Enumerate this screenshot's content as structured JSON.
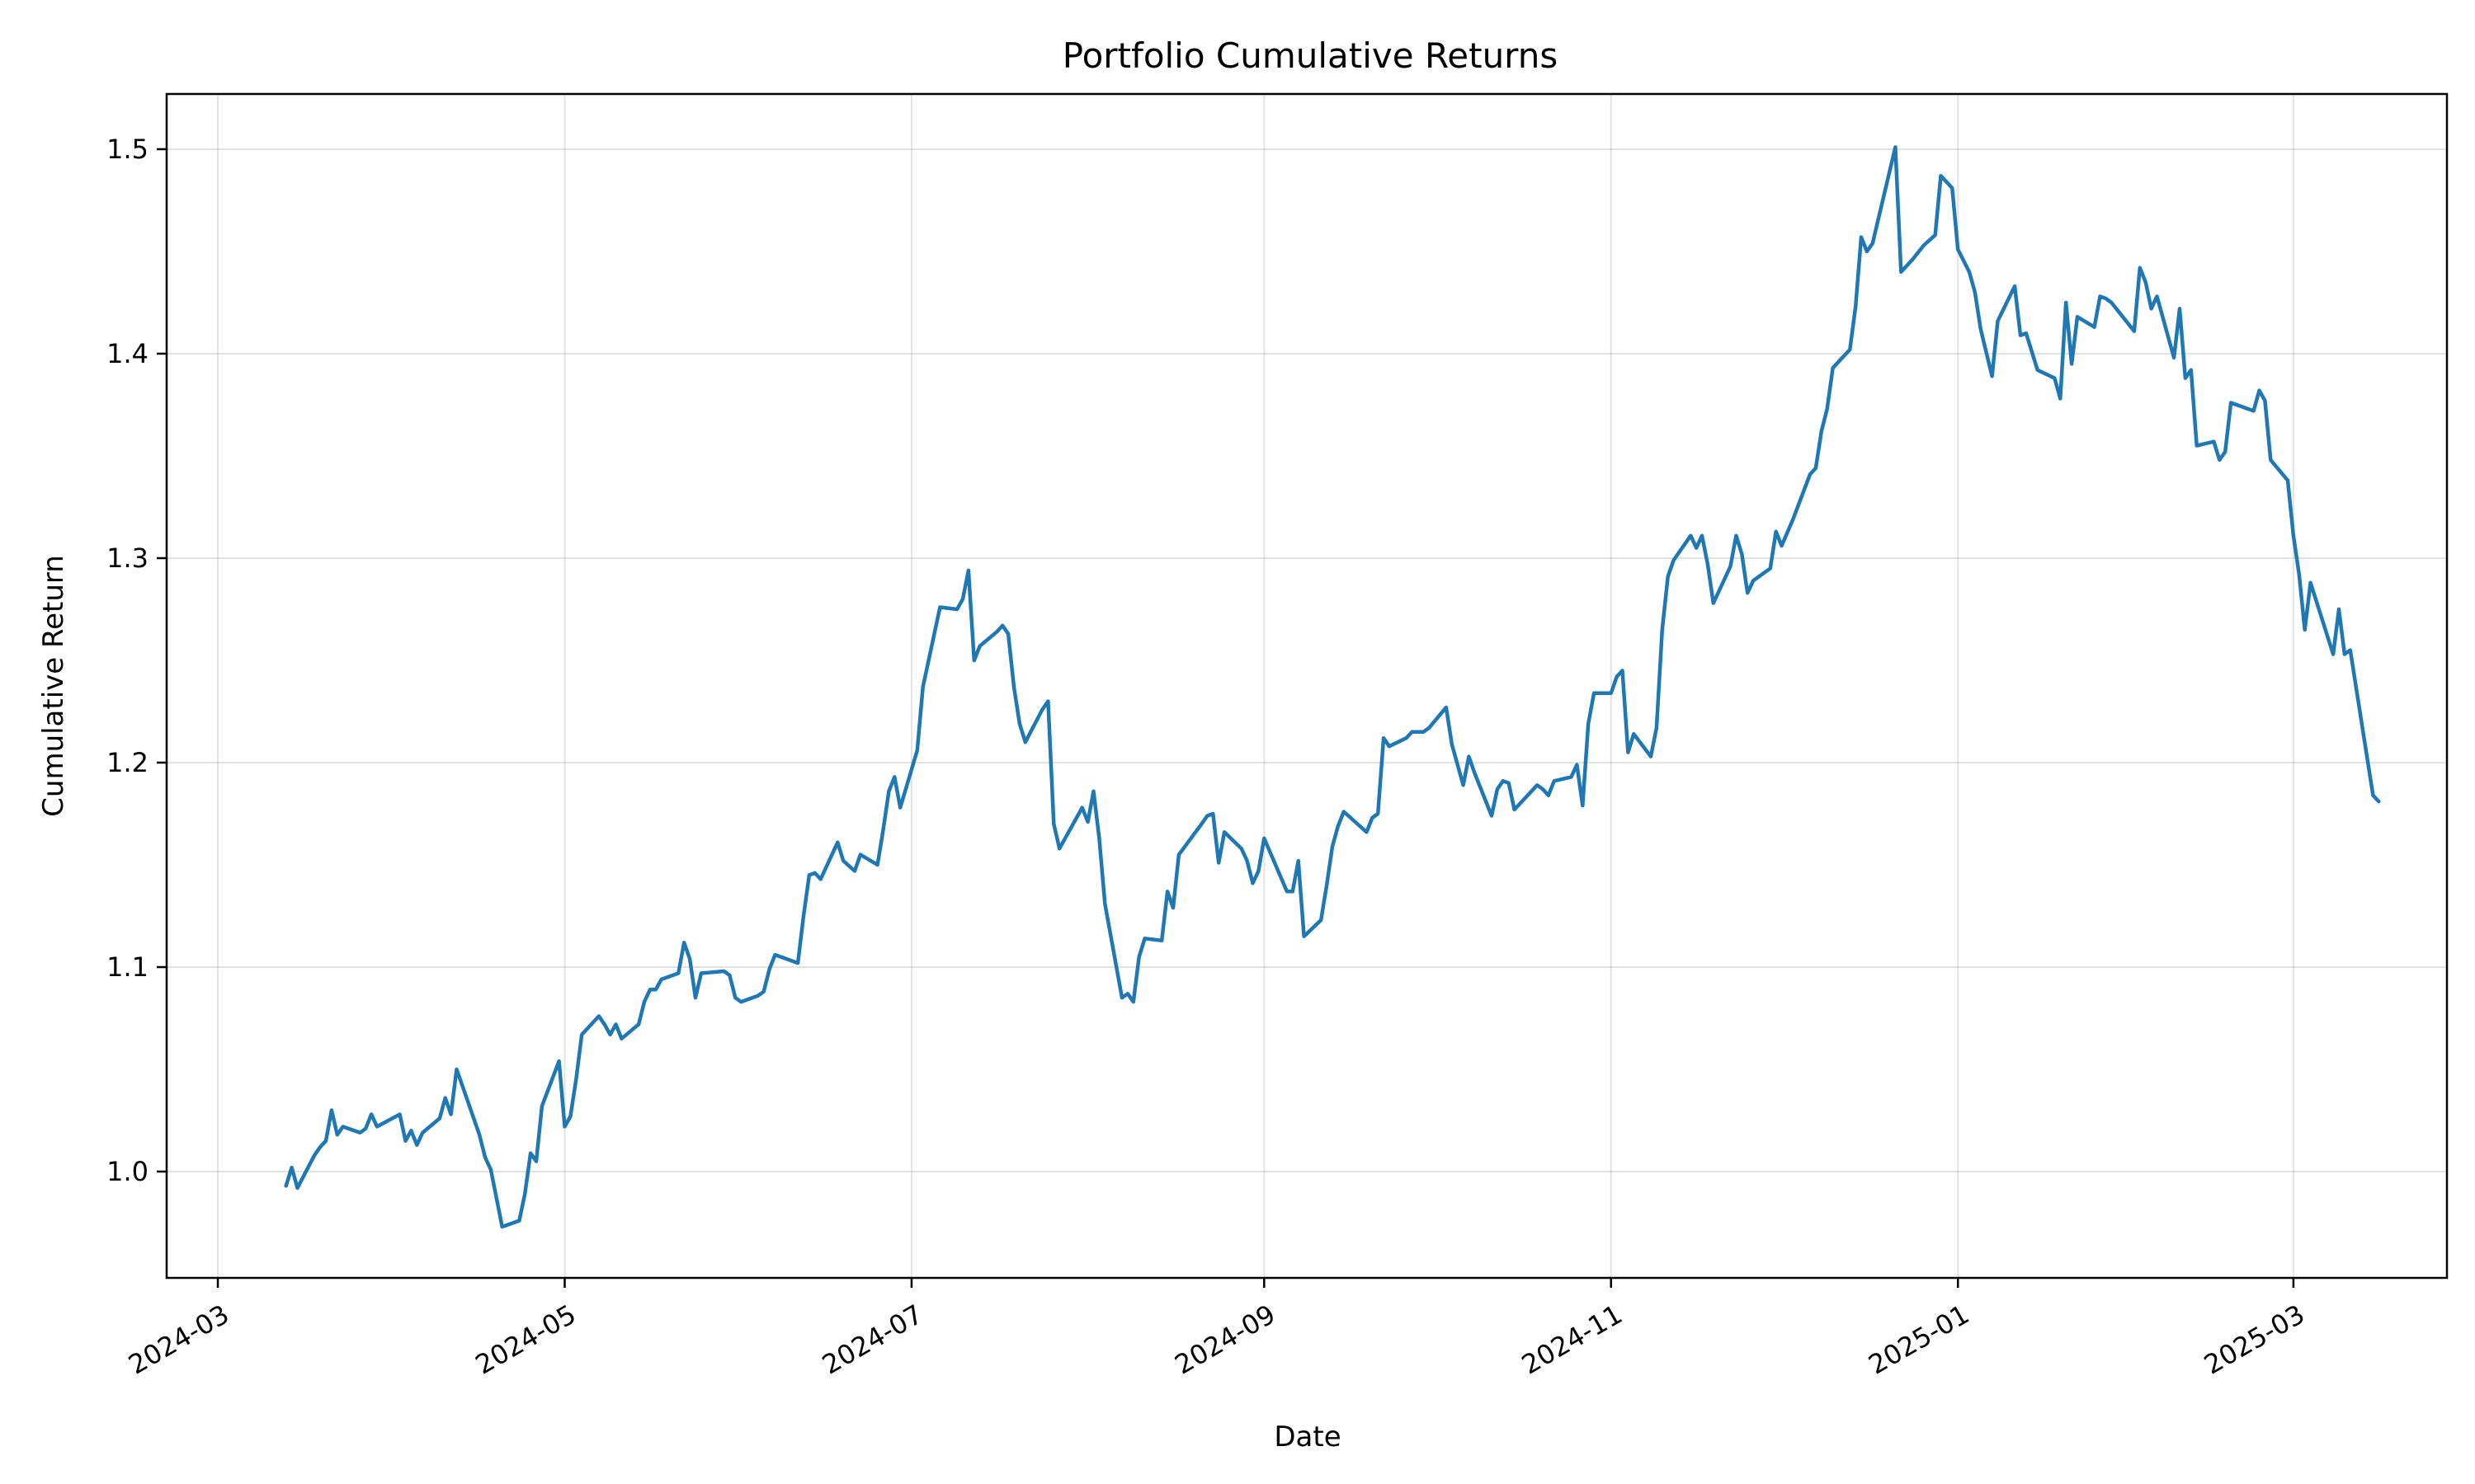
{
  "chart_data": {
    "type": "line",
    "title": "Portfolio Cumulative Returns",
    "xlabel": "Date",
    "ylabel": "Cumulative Return",
    "x_axis_type": "date",
    "xlim": [
      "2024-02-21",
      "2025-03-28"
    ],
    "ylim": [
      0.948,
      1.527
    ],
    "grid": true,
    "legend": "none",
    "line_color": "#1f77b4",
    "x_ticks": [
      {
        "value": "2024-03-01",
        "label": "2024-03"
      },
      {
        "value": "2024-05-01",
        "label": "2024-05"
      },
      {
        "value": "2024-07-01",
        "label": "2024-07"
      },
      {
        "value": "2024-09-01",
        "label": "2024-09"
      },
      {
        "value": "2024-11-01",
        "label": "2024-11"
      },
      {
        "value": "2025-01-01",
        "label": "2025-01"
      },
      {
        "value": "2025-03-01",
        "label": "2025-03"
      }
    ],
    "y_ticks": [
      {
        "value": 1.0,
        "label": "1.0"
      },
      {
        "value": 1.1,
        "label": "1.1"
      },
      {
        "value": 1.2,
        "label": "1.2"
      },
      {
        "value": 1.3,
        "label": "1.3"
      },
      {
        "value": 1.4,
        "label": "1.4"
      },
      {
        "value": 1.5,
        "label": "1.5"
      }
    ],
    "series": [
      {
        "points": [
          [
            "2024-03-13",
            0.993
          ],
          [
            "2024-03-14",
            1.002
          ],
          [
            "2024-03-15",
            0.992
          ],
          [
            "2024-03-18",
            1.008
          ],
          [
            "2024-03-19",
            1.012
          ],
          [
            "2024-03-20",
            1.015
          ],
          [
            "2024-03-21",
            1.03
          ],
          [
            "2024-03-22",
            1.018
          ],
          [
            "2024-03-23",
            1.022
          ],
          [
            "2024-03-26",
            1.019
          ],
          [
            "2024-03-27",
            1.021
          ],
          [
            "2024-03-28",
            1.028
          ],
          [
            "2024-03-29",
            1.022
          ],
          [
            "2024-04-02",
            1.028
          ],
          [
            "2024-04-03",
            1.015
          ],
          [
            "2024-04-04",
            1.02
          ],
          [
            "2024-04-05",
            1.013
          ],
          [
            "2024-04-06",
            1.019
          ],
          [
            "2024-04-09",
            1.026
          ],
          [
            "2024-04-10",
            1.036
          ],
          [
            "2024-04-11",
            1.028
          ],
          [
            "2024-04-12",
            1.05
          ],
          [
            "2024-04-16",
            1.018
          ],
          [
            "2024-04-17",
            1.007
          ],
          [
            "2024-04-18",
            1.001
          ],
          [
            "2024-04-19",
            0.987
          ],
          [
            "2024-04-20",
            0.973
          ],
          [
            "2024-04-23",
            0.976
          ],
          [
            "2024-04-24",
            0.989
          ],
          [
            "2024-04-25",
            1.009
          ],
          [
            "2024-04-26",
            1.005
          ],
          [
            "2024-04-27",
            1.032
          ],
          [
            "2024-04-30",
            1.054
          ],
          [
            "2024-05-01",
            1.022
          ],
          [
            "2024-05-02",
            1.027
          ],
          [
            "2024-05-03",
            1.045
          ],
          [
            "2024-05-04",
            1.067
          ],
          [
            "2024-05-07",
            1.076
          ],
          [
            "2024-05-08",
            1.072
          ],
          [
            "2024-05-09",
            1.067
          ],
          [
            "2024-05-10",
            1.072
          ],
          [
            "2024-05-11",
            1.065
          ],
          [
            "2024-05-14",
            1.072
          ],
          [
            "2024-05-15",
            1.083
          ],
          [
            "2024-05-16",
            1.089
          ],
          [
            "2024-05-17",
            1.089
          ],
          [
            "2024-05-18",
            1.094
          ],
          [
            "2024-05-21",
            1.097
          ],
          [
            "2024-05-22",
            1.112
          ],
          [
            "2024-05-23",
            1.104
          ],
          [
            "2024-05-24",
            1.085
          ],
          [
            "2024-05-25",
            1.097
          ],
          [
            "2024-05-29",
            1.098
          ],
          [
            "2024-05-30",
            1.096
          ],
          [
            "2024-05-31",
            1.085
          ],
          [
            "2024-06-01",
            1.083
          ],
          [
            "2024-06-04",
            1.086
          ],
          [
            "2024-06-05",
            1.088
          ],
          [
            "2024-06-06",
            1.099
          ],
          [
            "2024-06-07",
            1.106
          ],
          [
            "2024-06-11",
            1.102
          ],
          [
            "2024-06-12",
            1.125
          ],
          [
            "2024-06-13",
            1.145
          ],
          [
            "2024-06-14",
            1.146
          ],
          [
            "2024-06-15",
            1.143
          ],
          [
            "2024-06-18",
            1.161
          ],
          [
            "2024-06-19",
            1.152
          ],
          [
            "2024-06-21",
            1.147
          ],
          [
            "2024-06-22",
            1.155
          ],
          [
            "2024-06-25",
            1.15
          ],
          [
            "2024-06-26",
            1.167
          ],
          [
            "2024-06-27",
            1.186
          ],
          [
            "2024-06-28",
            1.193
          ],
          [
            "2024-06-29",
            1.178
          ],
          [
            "2024-07-02",
            1.206
          ],
          [
            "2024-07-03",
            1.237
          ],
          [
            "2024-07-04",
            1.25
          ],
          [
            "2024-07-06",
            1.276
          ],
          [
            "2024-07-09",
            1.275
          ],
          [
            "2024-07-10",
            1.28
          ],
          [
            "2024-07-11",
            1.294
          ],
          [
            "2024-07-12",
            1.25
          ],
          [
            "2024-07-13",
            1.257
          ],
          [
            "2024-07-16",
            1.264
          ],
          [
            "2024-07-17",
            1.267
          ],
          [
            "2024-07-18",
            1.263
          ],
          [
            "2024-07-19",
            1.237
          ],
          [
            "2024-07-20",
            1.219
          ],
          [
            "2024-07-21",
            1.21
          ],
          [
            "2024-07-24",
            1.226
          ],
          [
            "2024-07-25",
            1.23
          ],
          [
            "2024-07-26",
            1.17
          ],
          [
            "2024-07-27",
            1.158
          ],
          [
            "2024-07-28",
            1.163
          ],
          [
            "2024-07-31",
            1.178
          ],
          [
            "2024-08-01",
            1.171
          ],
          [
            "2024-08-02",
            1.186
          ],
          [
            "2024-08-03",
            1.163
          ],
          [
            "2024-08-04",
            1.131
          ],
          [
            "2024-08-07",
            1.085
          ],
          [
            "2024-08-08",
            1.087
          ],
          [
            "2024-08-09",
            1.083
          ],
          [
            "2024-08-10",
            1.105
          ],
          [
            "2024-08-11",
            1.114
          ],
          [
            "2024-08-14",
            1.113
          ],
          [
            "2024-08-15",
            1.137
          ],
          [
            "2024-08-16",
            1.129
          ],
          [
            "2024-08-17",
            1.155
          ],
          [
            "2024-08-21",
            1.17
          ],
          [
            "2024-08-22",
            1.174
          ],
          [
            "2024-08-23",
            1.175
          ],
          [
            "2024-08-24",
            1.151
          ],
          [
            "2024-08-25",
            1.166
          ],
          [
            "2024-08-28",
            1.158
          ],
          [
            "2024-08-29",
            1.152
          ],
          [
            "2024-08-30",
            1.141
          ],
          [
            "2024-08-31",
            1.147
          ],
          [
            "2024-09-01",
            1.163
          ],
          [
            "2024-09-05",
            1.137
          ],
          [
            "2024-09-06",
            1.137
          ],
          [
            "2024-09-07",
            1.152
          ],
          [
            "2024-09-08",
            1.115
          ],
          [
            "2024-09-11",
            1.123
          ],
          [
            "2024-09-12",
            1.14
          ],
          [
            "2024-09-13",
            1.159
          ],
          [
            "2024-09-14",
            1.169
          ],
          [
            "2024-09-15",
            1.176
          ],
          [
            "2024-09-19",
            1.166
          ],
          [
            "2024-09-20",
            1.173
          ],
          [
            "2024-09-21",
            1.175
          ],
          [
            "2024-09-22",
            1.212
          ],
          [
            "2024-09-23",
            1.208
          ],
          [
            "2024-09-26",
            1.212
          ],
          [
            "2024-09-27",
            1.215
          ],
          [
            "2024-09-29",
            1.215
          ],
          [
            "2024-09-30",
            1.217
          ],
          [
            "2024-10-03",
            1.227
          ],
          [
            "2024-10-04",
            1.209
          ],
          [
            "2024-10-06",
            1.189
          ],
          [
            "2024-10-07",
            1.203
          ],
          [
            "2024-10-08",
            1.195
          ],
          [
            "2024-10-11",
            1.174
          ],
          [
            "2024-10-12",
            1.187
          ],
          [
            "2024-10-13",
            1.191
          ],
          [
            "2024-10-14",
            1.19
          ],
          [
            "2024-10-15",
            1.177
          ],
          [
            "2024-10-19",
            1.189
          ],
          [
            "2024-10-20",
            1.187
          ],
          [
            "2024-10-21",
            1.184
          ],
          [
            "2024-10-22",
            1.191
          ],
          [
            "2024-10-25",
            1.193
          ],
          [
            "2024-10-26",
            1.199
          ],
          [
            "2024-10-27",
            1.179
          ],
          [
            "2024-10-28",
            1.219
          ],
          [
            "2024-10-29",
            1.234
          ],
          [
            "2024-11-01",
            1.234
          ],
          [
            "2024-11-02",
            1.242
          ],
          [
            "2024-11-03",
            1.245
          ],
          [
            "2024-11-04",
            1.205
          ],
          [
            "2024-11-05",
            1.214
          ],
          [
            "2024-11-08",
            1.203
          ],
          [
            "2024-11-09",
            1.217
          ],
          [
            "2024-11-10",
            1.265
          ],
          [
            "2024-11-11",
            1.291
          ],
          [
            "2024-11-12",
            1.299
          ],
          [
            "2024-11-15",
            1.311
          ],
          [
            "2024-11-16",
            1.305
          ],
          [
            "2024-11-17",
            1.311
          ],
          [
            "2024-11-18",
            1.297
          ],
          [
            "2024-11-19",
            1.278
          ],
          [
            "2024-11-22",
            1.296
          ],
          [
            "2024-11-23",
            1.311
          ],
          [
            "2024-11-24",
            1.302
          ],
          [
            "2024-11-25",
            1.283
          ],
          [
            "2024-11-26",
            1.289
          ],
          [
            "2024-11-29",
            1.295
          ],
          [
            "2024-11-30",
            1.313
          ],
          [
            "2024-12-01",
            1.306
          ],
          [
            "2024-12-03",
            1.319
          ],
          [
            "2024-12-06",
            1.341
          ],
          [
            "2024-12-07",
            1.344
          ],
          [
            "2024-12-08",
            1.362
          ],
          [
            "2024-12-09",
            1.373
          ],
          [
            "2024-12-10",
            1.393
          ],
          [
            "2024-12-13",
            1.402
          ],
          [
            "2024-12-14",
            1.423
          ],
          [
            "2024-12-15",
            1.457
          ],
          [
            "2024-12-16",
            1.45
          ],
          [
            "2024-12-17",
            1.454
          ],
          [
            "2024-12-21",
            1.501
          ],
          [
            "2024-12-22",
            1.44
          ],
          [
            "2024-12-24",
            1.446
          ],
          [
            "2024-12-26",
            1.453
          ],
          [
            "2024-12-28",
            1.458
          ],
          [
            "2024-12-29",
            1.487
          ],
          [
            "2024-12-31",
            1.481
          ],
          [
            "2025-01-01",
            1.451
          ],
          [
            "2025-01-03",
            1.44
          ],
          [
            "2025-01-04",
            1.43
          ],
          [
            "2025-01-05",
            1.412
          ],
          [
            "2025-01-07",
            1.389
          ],
          [
            "2025-01-08",
            1.416
          ],
          [
            "2025-01-11",
            1.433
          ],
          [
            "2025-01-12",
            1.409
          ],
          [
            "2025-01-13",
            1.41
          ],
          [
            "2025-01-15",
            1.392
          ],
          [
            "2025-01-18",
            1.388
          ],
          [
            "2025-01-19",
            1.378
          ],
          [
            "2025-01-20",
            1.425
          ],
          [
            "2025-01-21",
            1.395
          ],
          [
            "2025-01-22",
            1.418
          ],
          [
            "2025-01-25",
            1.413
          ],
          [
            "2025-01-26",
            1.428
          ],
          [
            "2025-01-27",
            1.427
          ],
          [
            "2025-01-28",
            1.425
          ],
          [
            "2025-02-01",
            1.411
          ],
          [
            "2025-02-02",
            1.442
          ],
          [
            "2025-02-03",
            1.435
          ],
          [
            "2025-02-04",
            1.422
          ],
          [
            "2025-02-05",
            1.428
          ],
          [
            "2025-02-08",
            1.398
          ],
          [
            "2025-02-09",
            1.422
          ],
          [
            "2025-02-10",
            1.388
          ],
          [
            "2025-02-11",
            1.392
          ],
          [
            "2025-02-12",
            1.355
          ],
          [
            "2025-02-15",
            1.357
          ],
          [
            "2025-02-16",
            1.348
          ],
          [
            "2025-02-17",
            1.352
          ],
          [
            "2025-02-18",
            1.376
          ],
          [
            "2025-02-22",
            1.372
          ],
          [
            "2025-02-23",
            1.382
          ],
          [
            "2025-02-24",
            1.377
          ],
          [
            "2025-02-25",
            1.348
          ],
          [
            "2025-02-28",
            1.338
          ],
          [
            "2025-03-01",
            1.311
          ],
          [
            "2025-03-02",
            1.292
          ],
          [
            "2025-03-03",
            1.265
          ],
          [
            "2025-03-04",
            1.288
          ],
          [
            "2025-03-08",
            1.253
          ],
          [
            "2025-03-09",
            1.275
          ],
          [
            "2025-03-10",
            1.253
          ],
          [
            "2025-03-11",
            1.255
          ],
          [
            "2025-03-15",
            1.184
          ],
          [
            "2025-03-16",
            1.181
          ]
        ]
      }
    ]
  }
}
